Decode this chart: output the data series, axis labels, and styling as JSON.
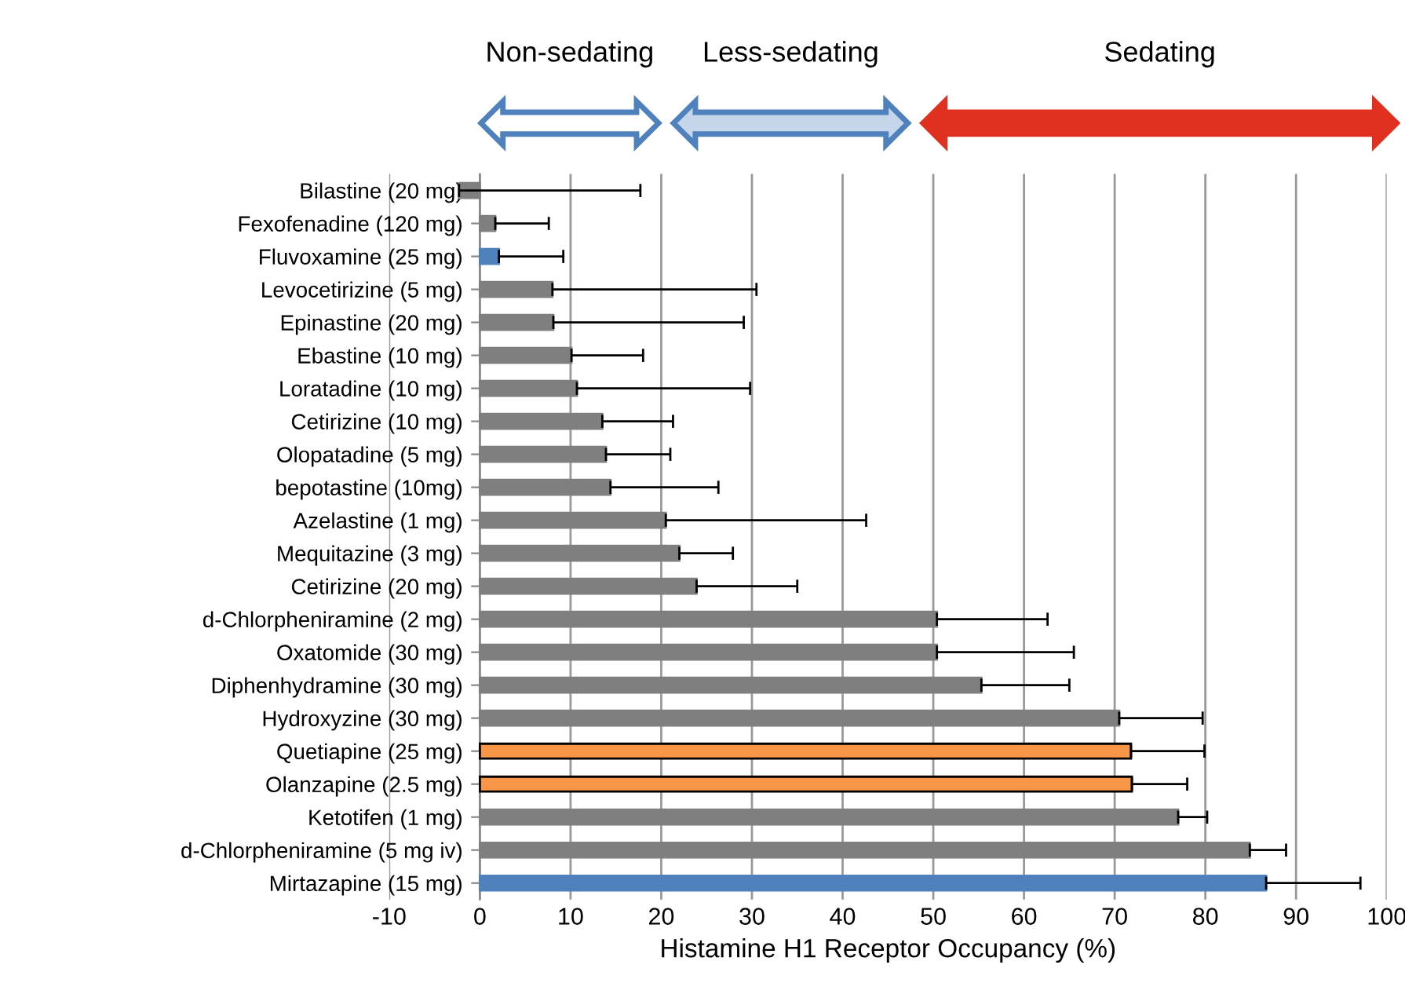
{
  "chart_data": {
    "type": "bar",
    "orientation": "horizontal",
    "xlabel": "Histamine H1 Receptor Occupancy (%)",
    "annotations": [
      "Non-sedating",
      "Less-sedating",
      "Sedating"
    ],
    "categories": [
      "Bilastine (20 mg)",
      "Fexofenadine (120 mg)",
      "Fluvoxamine (25 mg)",
      "Levocetirizine (5 mg)",
      "Epinastine (20 mg)",
      "Ebastine (10 mg)",
      "Loratadine (10 mg)",
      "Cetirizine (10 mg)",
      "Olopatadine (5 mg)",
      "bepotastine (10mg)",
      "Azelastine (1 mg)",
      "Mequitazine (3 mg)",
      "Cetirizine (20 mg)",
      "d-Chlorpheniramine (2 mg)",
      "Oxatomide (30 mg)",
      "Diphenhydramine (30 mg)",
      "Hydroxyzine (30 mg)",
      "Quetiapine (25 mg)",
      "Olanzapine (2.5 mg)",
      "Ketotifen (1 mg)",
      "d-Chlorpheniramine (5 mg iv)",
      "Mirtazapine (15 mg)"
    ],
    "values": [
      -2.3,
      1.7,
      2.1,
      8.0,
      8.1,
      10.1,
      10.7,
      13.5,
      13.9,
      14.4,
      20.5,
      22.0,
      23.9,
      50.4,
      50.4,
      55.3,
      70.5,
      71.8,
      71.9,
      77.0,
      84.9,
      86.7
    ],
    "errors": [
      [
        -2.3,
        17.7
      ],
      [
        1.7,
        7.6
      ],
      [
        2.1,
        9.2
      ],
      [
        8.0,
        30.5
      ],
      [
        8.1,
        29.1
      ],
      [
        10.1,
        18.0
      ],
      [
        10.7,
        29.8
      ],
      [
        13.5,
        21.3
      ],
      [
        13.9,
        21.0
      ],
      [
        14.4,
        26.3
      ],
      [
        20.5,
        42.6
      ],
      [
        22.0,
        27.9
      ],
      [
        23.9,
        35.0
      ],
      [
        50.4,
        62.6
      ],
      [
        50.4,
        65.5
      ],
      [
        55.3,
        65.0
      ],
      [
        70.5,
        79.7
      ],
      [
        71.8,
        79.9
      ],
      [
        71.9,
        78.0
      ],
      [
        77.0,
        80.2
      ],
      [
        84.9,
        88.9
      ],
      [
        86.7,
        97.1
      ]
    ],
    "colors": [
      "#7f7f7f",
      "#7f7f7f",
      "#4f81bd",
      "#7f7f7f",
      "#7f7f7f",
      "#7f7f7f",
      "#7f7f7f",
      "#7f7f7f",
      "#7f7f7f",
      "#7f7f7f",
      "#7f7f7f",
      "#7f7f7f",
      "#7f7f7f",
      "#7f7f7f",
      "#7f7f7f",
      "#7f7f7f",
      "#7f7f7f",
      "#f79646",
      "#f79646",
      "#7f7f7f",
      "#7f7f7f",
      "#4f81bd"
    ],
    "xlim": [
      -10,
      100
    ],
    "xticks": [
      -10,
      0,
      10,
      20,
      30,
      40,
      50,
      60,
      70,
      80,
      90,
      100
    ],
    "grid": "x"
  }
}
